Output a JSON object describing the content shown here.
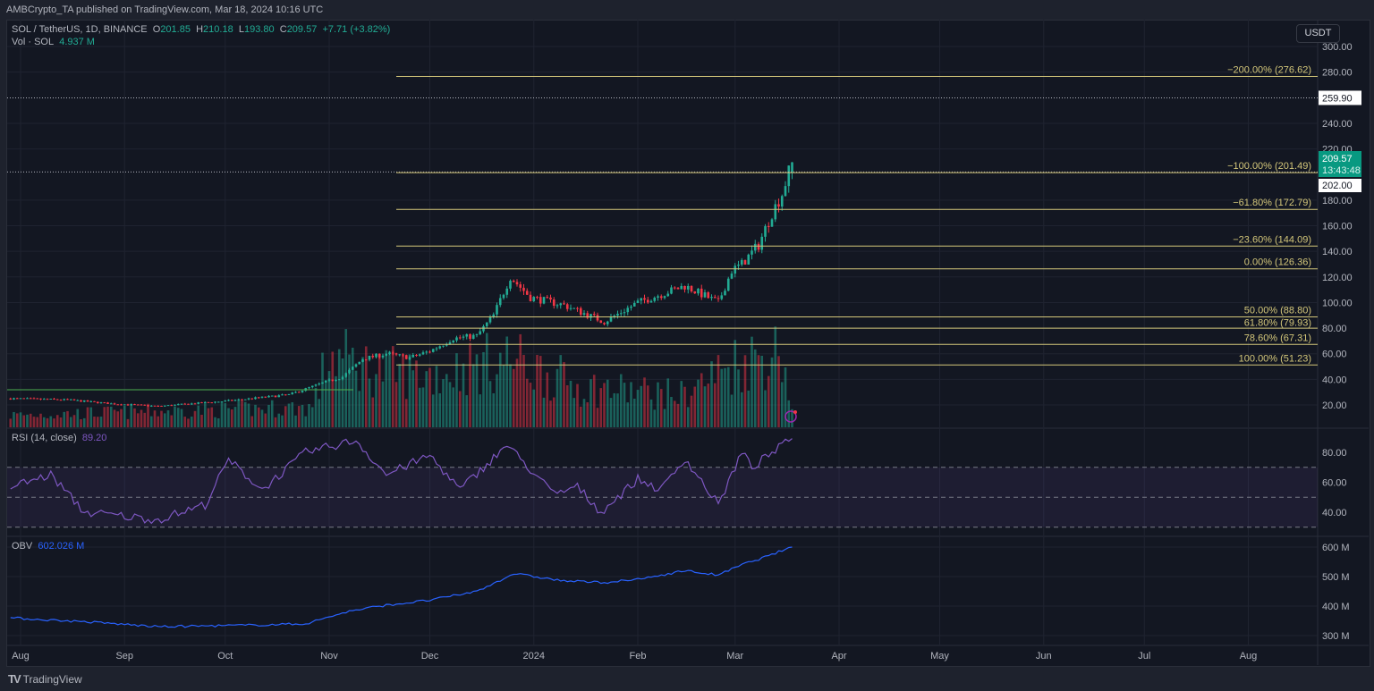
{
  "header": {
    "published": "AMBCrypto_TA published on TradingView.com, Mar 18, 2024 10:16 UTC"
  },
  "legend": {
    "symbol": "SOL / TetherUS, 1D, BINANCE",
    "o_label": "O",
    "open": "201.85",
    "h_label": "H",
    "high": "210.18",
    "l_label": "L",
    "low": "193.80",
    "c_label": "C",
    "close": "209.57",
    "change": "+7.71 (+3.82%)",
    "vol_label": "Vol · SOL",
    "vol_value": "4.937 M",
    "rsi_label": "RSI (14, close)",
    "rsi_value": "89.20",
    "obv_label": "OBV",
    "obv_value": "602.026 M"
  },
  "axis": {
    "currency": "USDT",
    "current_price": "209.57",
    "countdown": "13:43:48",
    "level_a": "259.90",
    "level_b": "202.00"
  },
  "brand": {
    "name": "TradingView"
  },
  "colors": {
    "up": "#22ab94",
    "down": "#f23645",
    "fib": "#d4c77a",
    "rsi": "#7e57c2",
    "obv": "#2962ff"
  },
  "chart_data": {
    "type": "candlestick",
    "title": "SOL / TetherUS, 1D, BINANCE",
    "start_date": "2023-07-29",
    "price_ylim": [
      0,
      310
    ],
    "price_ticks": [
      "300.00",
      "280.00",
      "240.00",
      "220.00",
      "180.00",
      "160.00",
      "140.00",
      "120.00",
      "100.00",
      "80.00",
      "60.00",
      "40.00",
      "20.00"
    ],
    "price_tick_values": [
      300,
      280,
      240,
      220,
      180,
      160,
      140,
      120,
      100,
      80,
      60,
      40,
      20
    ],
    "x_ticks": [
      {
        "label": "Aug",
        "day": 3
      },
      {
        "label": "Sep",
        "day": 34
      },
      {
        "label": "Oct",
        "day": 64
      },
      {
        "label": "Nov",
        "day": 95
      },
      {
        "label": "Dec",
        "day": 125
      },
      {
        "label": "2024",
        "day": 156
      },
      {
        "label": "Feb",
        "day": 187
      },
      {
        "label": "Mar",
        "day": 216
      },
      {
        "label": "Apr",
        "day": 247
      },
      {
        "label": "May",
        "day": 277
      },
      {
        "label": "Jun",
        "day": 308
      },
      {
        "label": "Jul",
        "day": 338
      },
      {
        "label": "Aug",
        "day": 369
      }
    ],
    "price_keypoints": [
      [
        0,
        25
      ],
      [
        17,
        24
      ],
      [
        30,
        21
      ],
      [
        44,
        19
      ],
      [
        64,
        23
      ],
      [
        83,
        28
      ],
      [
        94,
        38
      ],
      [
        99,
        42
      ],
      [
        105,
        56
      ],
      [
        112,
        60
      ],
      [
        119,
        57
      ],
      [
        125,
        62
      ],
      [
        132,
        72
      ],
      [
        139,
        74
      ],
      [
        144,
        90
      ],
      [
        149,
        120
      ],
      [
        155,
        104
      ],
      [
        165,
        98
      ],
      [
        177,
        85
      ],
      [
        187,
        100
      ],
      [
        201,
        113
      ],
      [
        211,
        100
      ],
      [
        215,
        125
      ],
      [
        218,
        130
      ],
      [
        223,
        145
      ],
      [
        227,
        170
      ],
      [
        230,
        185
      ],
      [
        232,
        201.85
      ],
      [
        233,
        209.57
      ]
    ],
    "volume_keypoints": [
      [
        0,
        0.3
      ],
      [
        90,
        0.5
      ],
      [
        95,
        1.8
      ],
      [
        110,
        1.4
      ],
      [
        125,
        1.3
      ],
      [
        149,
        1.7
      ],
      [
        170,
        1.0
      ],
      [
        200,
        0.8
      ],
      [
        216,
        1.6
      ],
      [
        230,
        1.9
      ],
      [
        233,
        0.4
      ]
    ],
    "fib_levels": [
      {
        "label": "−200.00% (276.62)",
        "price": 276.62
      },
      {
        "label": "−100.00% (201.49)",
        "price": 201.49
      },
      {
        "label": "−61.80% (172.79)",
        "price": 172.79
      },
      {
        "label": "−23.60% (144.09)",
        "price": 144.09
      },
      {
        "label": "0.00% (126.36)",
        "price": 126.36
      },
      {
        "label": "50.00% (88.80)",
        "price": 88.8
      },
      {
        "label": "61.80% (79.93)",
        "price": 79.93
      },
      {
        "label": "78.60% (67.31)",
        "price": 67.31
      },
      {
        "label": "100.00% (51.23)",
        "price": 51.23
      }
    ],
    "rsi": {
      "ticks": [
        "80.00",
        "60.00",
        "40.00"
      ],
      "tick_values": [
        80,
        60,
        40
      ],
      "bands": [
        70,
        50,
        30
      ],
      "keypoints": [
        [
          0,
          57
        ],
        [
          12,
          65
        ],
        [
          22,
          40
        ],
        [
          44,
          35
        ],
        [
          58,
          45
        ],
        [
          65,
          75
        ],
        [
          75,
          55
        ],
        [
          88,
          80
        ],
        [
          103,
          88
        ],
        [
          112,
          65
        ],
        [
          125,
          78
        ],
        [
          134,
          55
        ],
        [
          148,
          85
        ],
        [
          162,
          52
        ],
        [
          169,
          57
        ],
        [
          176,
          40
        ],
        [
          187,
          62
        ],
        [
          194,
          55
        ],
        [
          201,
          76
        ],
        [
          211,
          45
        ],
        [
          218,
          80
        ],
        [
          221,
          70
        ],
        [
          233,
          89.2
        ]
      ]
    },
    "obv": {
      "ticks": [
        "600 M",
        "500 M",
        "400 M",
        "300 M"
      ],
      "tick_values": [
        600,
        500,
        400,
        300
      ],
      "keypoints": [
        [
          0,
          360
        ],
        [
          25,
          345
        ],
        [
          44,
          330
        ],
        [
          70,
          335
        ],
        [
          88,
          340
        ],
        [
          100,
          380
        ],
        [
          110,
          400
        ],
        [
          125,
          420
        ],
        [
          139,
          450
        ],
        [
          150,
          510
        ],
        [
          165,
          485
        ],
        [
          177,
          480
        ],
        [
          187,
          490
        ],
        [
          201,
          520
        ],
        [
          211,
          505
        ],
        [
          218,
          540
        ],
        [
          226,
          570
        ],
        [
          233,
          602
        ]
      ]
    }
  }
}
